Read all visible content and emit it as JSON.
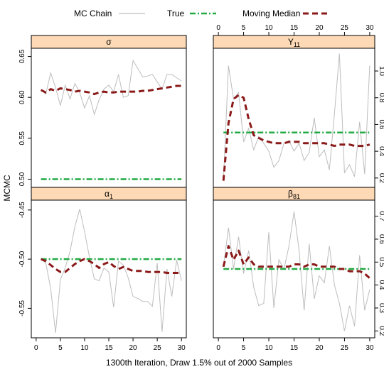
{
  "chart_data": {
    "type": "line",
    "xlabel": "1300th Iteration, Draw 1.5% out of 2000 Samples",
    "ylabel": "MCMC",
    "legend": {
      "placement": "top",
      "entries": [
        {
          "name": "MC Chain",
          "color": "#bdbdbd",
          "style": "solid"
        },
        {
          "name": "True",
          "color": "#22aa44",
          "style": "dash-dot"
        },
        {
          "name": "Moving Median",
          "color": "#8b1a1a",
          "style": "dashed"
        }
      ]
    },
    "x_ticks": [
      "0",
      "5",
      "10",
      "15",
      "20",
      "25",
      "30"
    ],
    "xlim": [
      -1,
      31
    ],
    "panels": [
      {
        "id": "sigma",
        "title": "σ",
        "sub": "",
        "ylim": [
          0.49,
          0.66
        ],
        "y_ticks": [
          "0.50",
          "0.55",
          "0.60",
          "0.65"
        ],
        "y_tick_values": [
          0.5,
          0.55,
          0.6,
          0.65
        ],
        "x": [
          1,
          2,
          3,
          4,
          5,
          6,
          7,
          8,
          9,
          10,
          11,
          12,
          13,
          14,
          15,
          16,
          17,
          18,
          19,
          20,
          21,
          22,
          23,
          24,
          25,
          26,
          27,
          28,
          29,
          30
        ],
        "chain": [
          0.609,
          0.604,
          0.63,
          0.612,
          0.59,
          0.615,
          0.598,
          0.617,
          0.606,
          0.587,
          0.602,
          0.579,
          0.597,
          0.61,
          0.615,
          0.607,
          0.628,
          0.6,
          0.602,
          0.645,
          0.635,
          0.625,
          0.626,
          0.628,
          0.619,
          0.61,
          0.628,
          0.628,
          0.624,
          0.62
        ],
        "median": [
          0.609,
          0.606,
          0.61,
          0.608,
          0.611,
          0.61,
          0.609,
          0.607,
          0.608,
          0.607,
          0.606,
          0.604,
          0.606,
          0.607,
          0.606,
          0.606,
          0.607,
          0.607,
          0.607,
          0.607,
          0.607,
          0.608,
          0.608,
          0.609,
          0.61,
          0.611,
          0.612,
          0.613,
          0.614,
          0.614
        ],
        "true": 0.5
      },
      {
        "id": "y11",
        "title": "Y",
        "sub": "11",
        "ylim": [
          0.13,
          1.17
        ],
        "y_ticks": [
          "0.2",
          "0.4",
          "0.6",
          "0.8",
          "1.0"
        ],
        "y_tick_values": [
          0.2,
          0.4,
          0.6,
          0.8,
          1.0
        ],
        "x": [
          1,
          2,
          3,
          4,
          5,
          6,
          7,
          8,
          9,
          10,
          11,
          12,
          13,
          14,
          15,
          16,
          17,
          18,
          19,
          20,
          21,
          22,
          23,
          24,
          25,
          26,
          27,
          28,
          29,
          30
        ],
        "chain": [
          0.18,
          1.04,
          0.79,
          0.84,
          0.47,
          0.57,
          0.41,
          0.51,
          0.46,
          0.4,
          0.28,
          0.33,
          0.46,
          0.48,
          0.4,
          0.46,
          0.33,
          0.39,
          0.65,
          0.36,
          0.41,
          0.26,
          0.68,
          1.13,
          0.24,
          0.3,
          0.21,
          0.62,
          0.23,
          1.04
        ],
        "median": [
          0.18,
          0.61,
          0.79,
          0.82,
          0.8,
          0.64,
          0.52,
          0.5,
          0.48,
          0.47,
          0.46,
          0.46,
          0.46,
          0.47,
          0.47,
          0.47,
          0.46,
          0.46,
          0.46,
          0.46,
          0.46,
          0.45,
          0.44,
          0.45,
          0.45,
          0.45,
          0.44,
          0.44,
          0.44,
          0.45
        ],
        "true": 0.54
      },
      {
        "id": "alpha1",
        "title": "α",
        "sub": "1",
        "ylim": [
          -0.58,
          -0.44
        ],
        "y_ticks": [
          "-0.55",
          "-0.50",
          "-0.45"
        ],
        "y_tick_values": [
          -0.55,
          -0.5,
          -0.45
        ],
        "x": [
          1,
          2,
          3,
          4,
          5,
          6,
          7,
          8,
          9,
          10,
          11,
          12,
          13,
          14,
          15,
          16,
          17,
          18,
          19,
          20,
          21,
          22,
          23,
          24,
          25,
          26,
          27,
          28,
          29,
          30
        ],
        "chain": [
          -0.5,
          -0.504,
          -0.53,
          -0.575,
          -0.521,
          -0.509,
          -0.492,
          -0.467,
          -0.449,
          -0.472,
          -0.498,
          -0.52,
          -0.522,
          -0.509,
          -0.513,
          -0.549,
          -0.502,
          -0.506,
          -0.519,
          -0.538,
          -0.54,
          -0.543,
          -0.543,
          -0.548,
          -0.504,
          -0.574,
          -0.51,
          -0.538,
          -0.501,
          -0.522
        ],
        "median": [
          -0.5,
          -0.502,
          -0.506,
          -0.51,
          -0.513,
          -0.513,
          -0.509,
          -0.505,
          -0.502,
          -0.5,
          -0.502,
          -0.505,
          -0.509,
          -0.505,
          -0.503,
          -0.507,
          -0.51,
          -0.508,
          -0.51,
          -0.512,
          -0.512,
          -0.512,
          -0.513,
          -0.513,
          -0.513,
          -0.513,
          -0.514,
          -0.514,
          -0.514,
          -0.514
        ],
        "true": -0.5
      },
      {
        "id": "beta81",
        "title": "β",
        "sub": "81",
        "ylim": [
          0.17,
          0.77
        ],
        "y_ticks": [
          "0.2",
          "0.3",
          "0.4",
          "0.5",
          "0.6",
          "0.7"
        ],
        "y_tick_values": [
          0.2,
          0.3,
          0.4,
          0.5,
          0.6,
          0.7
        ],
        "x": [
          1,
          2,
          3,
          4,
          5,
          6,
          7,
          8,
          9,
          10,
          11,
          12,
          13,
          14,
          15,
          16,
          17,
          18,
          19,
          20,
          21,
          22,
          23,
          24,
          25,
          26,
          27,
          28,
          29,
          30
        ],
        "chain": [
          0.48,
          0.65,
          0.47,
          0.61,
          0.45,
          0.55,
          0.39,
          0.31,
          0.32,
          0.63,
          0.3,
          0.51,
          0.47,
          0.57,
          0.72,
          0.55,
          0.29,
          0.58,
          0.34,
          0.44,
          0.41,
          0.57,
          0.4,
          0.32,
          0.2,
          0.31,
          0.22,
          0.53,
          0.29,
          0.38
        ],
        "median": [
          0.48,
          0.57,
          0.51,
          0.55,
          0.49,
          0.52,
          0.49,
          0.48,
          0.48,
          0.48,
          0.48,
          0.48,
          0.48,
          0.48,
          0.49,
          0.49,
          0.48,
          0.49,
          0.49,
          0.48,
          0.48,
          0.48,
          0.48,
          0.47,
          0.47,
          0.46,
          0.46,
          0.46,
          0.45,
          0.43
        ],
        "true": 0.47
      }
    ]
  }
}
